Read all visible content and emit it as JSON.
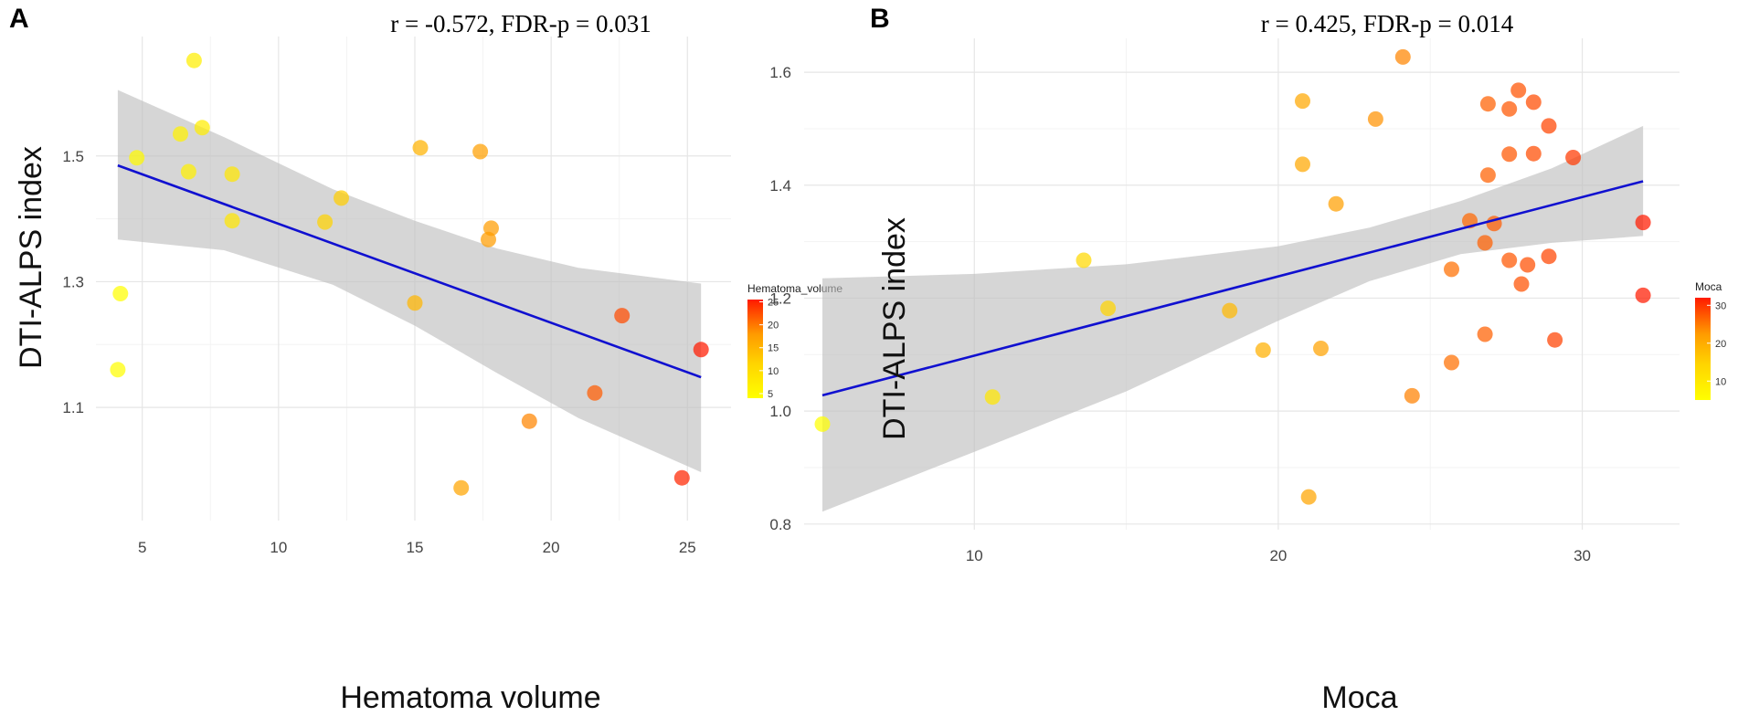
{
  "chart_data": [
    {
      "panel": "A",
      "type": "scatter",
      "title": "r = -0.572, FDR-p = 0.031",
      "xlabel": "Hematoma volume",
      "ylabel": "DTI-ALPS index",
      "xlim": [
        3.3,
        26.6
      ],
      "ylim": [
        0.92,
        1.69
      ],
      "xticks": [
        5,
        10,
        15,
        20,
        25
      ],
      "yticks": [
        1.1,
        1.3,
        1.5
      ],
      "legend": {
        "title": "Hematoma_volume",
        "ticks": [
          5,
          10,
          15,
          20,
          25
        ],
        "range": [
          4,
          25.5
        ],
        "position": "right"
      },
      "regression": {
        "x": [
          4.1,
          25.5
        ],
        "y": [
          1.485,
          1.148
        ]
      },
      "ci_band": {
        "x": [
          4.1,
          8,
          12,
          15,
          18,
          21,
          25.5
        ],
        "upper": [
          1.605,
          1.53,
          1.447,
          1.397,
          1.353,
          1.322,
          1.297
        ],
        "lower": [
          1.367,
          1.35,
          1.295,
          1.23,
          1.155,
          1.083,
          0.997
        ]
      },
      "points": [
        {
          "x": 6.9,
          "y": 1.652
        },
        {
          "x": 7.2,
          "y": 1.545
        },
        {
          "x": 6.4,
          "y": 1.535
        },
        {
          "x": 4.8,
          "y": 1.497
        },
        {
          "x": 6.7,
          "y": 1.475
        },
        {
          "x": 8.3,
          "y": 1.471
        },
        {
          "x": 8.3,
          "y": 1.397
        },
        {
          "x": 4.2,
          "y": 1.281
        },
        {
          "x": 4.1,
          "y": 1.16
        },
        {
          "x": 11.7,
          "y": 1.395
        },
        {
          "x": 12.3,
          "y": 1.433
        },
        {
          "x": 15.2,
          "y": 1.513
        },
        {
          "x": 17.4,
          "y": 1.507
        },
        {
          "x": 17.8,
          "y": 1.385
        },
        {
          "x": 17.7,
          "y": 1.367
        },
        {
          "x": 15.0,
          "y": 1.266
        },
        {
          "x": 16.7,
          "y": 0.972
        },
        {
          "x": 19.2,
          "y": 1.078
        },
        {
          "x": 21.6,
          "y": 1.123
        },
        {
          "x": 22.6,
          "y": 1.246
        },
        {
          "x": 25.5,
          "y": 1.192
        },
        {
          "x": 24.8,
          "y": 0.988
        }
      ]
    },
    {
      "panel": "B",
      "type": "scatter",
      "title": "r = 0.425, FDR-p = 0.014",
      "xlabel": "Moca",
      "ylabel": "DTI-ALPS index",
      "xlim": [
        4.4,
        33.2
      ],
      "ylim": [
        0.79,
        1.66
      ],
      "xticks": [
        10,
        20,
        30
      ],
      "yticks": [
        0.8,
        1.0,
        1.2,
        1.4,
        1.6
      ],
      "legend": {
        "title": "Moca",
        "ticks": [
          10,
          20,
          30
        ],
        "range": [
          5,
          32
        ],
        "position": "right"
      },
      "regression": {
        "x": [
          5,
          32
        ],
        "y": [
          1.028,
          1.407
        ]
      },
      "ci_band": {
        "x": [
          5,
          10,
          15,
          20,
          23,
          26,
          29,
          32
        ],
        "upper": [
          1.235,
          1.243,
          1.26,
          1.292,
          1.325,
          1.372,
          1.43,
          1.505
        ],
        "lower": [
          0.822,
          0.928,
          1.035,
          1.16,
          1.23,
          1.278,
          1.298,
          1.31
        ]
      },
      "points": [
        {
          "x": 5.0,
          "y": 0.977
        },
        {
          "x": 10.6,
          "y": 1.025
        },
        {
          "x": 13.6,
          "y": 1.267
        },
        {
          "x": 14.4,
          "y": 1.182
        },
        {
          "x": 18.4,
          "y": 1.178
        },
        {
          "x": 19.5,
          "y": 1.108
        },
        {
          "x": 20.8,
          "y": 1.549
        },
        {
          "x": 20.8,
          "y": 1.437
        },
        {
          "x": 21.0,
          "y": 0.848
        },
        {
          "x": 21.4,
          "y": 1.111
        },
        {
          "x": 21.9,
          "y": 1.367
        },
        {
          "x": 23.2,
          "y": 1.517
        },
        {
          "x": 24.1,
          "y": 1.627
        },
        {
          "x": 24.4,
          "y": 1.027
        },
        {
          "x": 25.7,
          "y": 1.251
        },
        {
          "x": 25.7,
          "y": 1.086
        },
        {
          "x": 26.3,
          "y": 1.337
        },
        {
          "x": 26.9,
          "y": 1.544
        },
        {
          "x": 26.9,
          "y": 1.418
        },
        {
          "x": 26.8,
          "y": 1.298
        },
        {
          "x": 26.8,
          "y": 1.136
        },
        {
          "x": 27.1,
          "y": 1.332
        },
        {
          "x": 27.6,
          "y": 1.535
        },
        {
          "x": 27.6,
          "y": 1.455
        },
        {
          "x": 27.6,
          "y": 1.267
        },
        {
          "x": 27.9,
          "y": 1.568
        },
        {
          "x": 28.0,
          "y": 1.225
        },
        {
          "x": 28.2,
          "y": 1.259
        },
        {
          "x": 28.4,
          "y": 1.547
        },
        {
          "x": 28.4,
          "y": 1.456
        },
        {
          "x": 28.9,
          "y": 1.505
        },
        {
          "x": 28.9,
          "y": 1.274
        },
        {
          "x": 29.1,
          "y": 1.126
        },
        {
          "x": 29.7,
          "y": 1.449
        },
        {
          "x": 32.0,
          "y": 1.334
        },
        {
          "x": 32.0,
          "y": 1.205
        }
      ]
    }
  ]
}
